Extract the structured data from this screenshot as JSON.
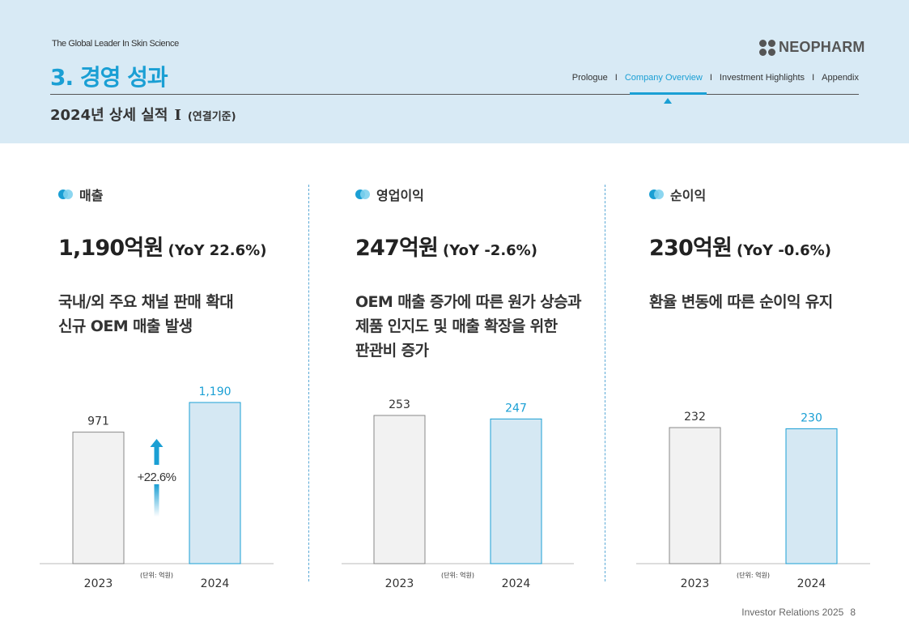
{
  "header": {
    "tagline": "The Global Leader In Skin Science",
    "section_title": "3. 경영 성과",
    "logo": "NEOPHARM",
    "nav": [
      "Prologue",
      "Company Overview",
      "Investment Highlights",
      "Appendix"
    ],
    "nav_separator": "I",
    "active_nav": "Company Overview",
    "subtitle": "2024년 상세 실적",
    "subtitle_numeral": "I",
    "subtitle_note": "(연결기준)"
  },
  "metrics": [
    {
      "label": "매출",
      "headline": "1,190억원",
      "yoy": "(YoY 22.6%)",
      "desc": [
        "국내/외 주요 채널 판매 확대",
        "신규 OEM 매출 발생"
      ]
    },
    {
      "label": "영업이익",
      "headline": "247억원",
      "yoy": "(YoY -2.6%)",
      "desc": [
        "OEM 매출 증가에 따른 원가 상승과",
        "제품 인지도 및 매출 확장을 위한",
        "판관비 증가"
      ]
    },
    {
      "label": "순이익",
      "headline": "230억원",
      "yoy": "(YoY -0.6%)",
      "desc": [
        "환율 변동에 따른 순이익 유지"
      ]
    }
  ],
  "chart_data": [
    {
      "type": "bar",
      "categories": [
        "2023",
        "2024"
      ],
      "values": [
        971,
        1190
      ],
      "value_labels": [
        "971",
        "1,190"
      ],
      "unit_note": "(단위: 억원)",
      "annotation": "+22.6%",
      "colors": [
        "#f2f2f2",
        "#d5e8f3"
      ],
      "label_colors": [
        "#333333",
        "#1a9fd4"
      ]
    },
    {
      "type": "bar",
      "categories": [
        "2023",
        "2024"
      ],
      "values": [
        253,
        247
      ],
      "value_labels": [
        "253",
        "247"
      ],
      "unit_note": "(단위: 억원)",
      "colors": [
        "#f2f2f2",
        "#d5e8f3"
      ],
      "label_colors": [
        "#333333",
        "#1a9fd4"
      ]
    },
    {
      "type": "bar",
      "categories": [
        "2023",
        "2024"
      ],
      "values": [
        232,
        230
      ],
      "value_labels": [
        "232",
        "230"
      ],
      "unit_note": "(단위: 억원)",
      "colors": [
        "#f2f2f2",
        "#d5e8f3"
      ],
      "label_colors": [
        "#333333",
        "#1a9fd4"
      ]
    }
  ],
  "footer": {
    "text": "Investor Relations 2025",
    "page": "8"
  }
}
